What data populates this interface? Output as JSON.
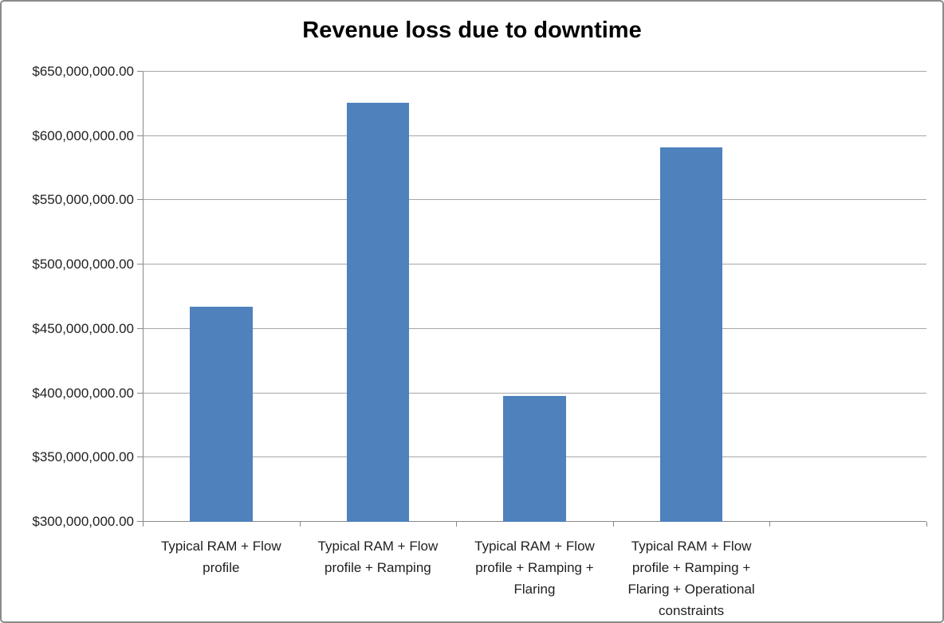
{
  "chart": {
    "bar_color": "#4F81BD",
    "gridline_color": "#A6A6A6",
    "axis_color": "#898989",
    "frame_border_color": "#8A8A8A",
    "background": "#FFFFFF",
    "text_color": "#1F1F1F",
    "title_color": "#000000"
  },
  "chart_data": {
    "type": "bar",
    "title": "Revenue loss due to downtime",
    "xlabel": "",
    "ylabel": "",
    "grid": true,
    "legend": false,
    "categories": [
      "Typical RAM + Flow profile",
      "Typical RAM + Flow profile + Ramping",
      "Typical RAM + Flow profile + Ramping + Flaring",
      "Typical RAM + Flow profile + Ramping + Flaring + Operational constraints"
    ],
    "values": [
      467000000,
      626000000,
      398000000,
      591000000
    ],
    "ylim": [
      300000000,
      650000000
    ],
    "ytick_step": 50000000,
    "ytick_values": [
      300000000,
      350000000,
      400000000,
      450000000,
      500000000,
      550000000,
      600000000,
      650000000
    ],
    "ytick_labels": [
      "$300,000,000.00",
      "$350,000,000.00",
      "$400,000,000.00",
      "$450,000,000.00",
      "$500,000,000.00",
      "$550,000,000.00",
      "$600,000,000.00",
      "$650,000,000.00"
    ],
    "num_category_slots": 5,
    "bar_width_ratio": 0.4
  }
}
